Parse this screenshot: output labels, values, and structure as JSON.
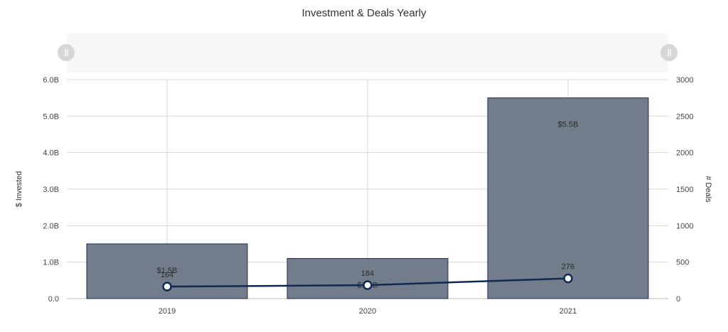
{
  "chart_data": {
    "type": "bar+line",
    "title": "Investment & Deals Yearly",
    "categories": [
      "2019",
      "2020",
      "2021"
    ],
    "series": [
      {
        "name": "$ Invested",
        "type": "bar",
        "axis": "left",
        "values": [
          1.5,
          1.1,
          5.5
        ],
        "unit": "B",
        "labels": [
          "$1.5B",
          "$1.1B",
          "$5.5B"
        ],
        "color": "#737c8a",
        "border": "#1f2f55"
      },
      {
        "name": "# Deals",
        "type": "line",
        "axis": "right",
        "values": [
          164,
          184,
          276
        ],
        "labels": [
          "164",
          "184",
          "276"
        ],
        "color": "#0f2a52"
      }
    ],
    "ylabel_left": "$ Invested",
    "ylabel_right": "# Deals",
    "ylim_left": [
      0,
      6.0
    ],
    "ylim_right": [
      0,
      3000
    ],
    "yticks_left": [
      "0.0",
      "1.0B",
      "2.0B",
      "3.0B",
      "4.0B",
      "5.0B",
      "6.0B"
    ],
    "yticks_right": [
      "0",
      "500",
      "1000",
      "1500",
      "2000",
      "2500",
      "3000"
    ],
    "grid": true,
    "navigator": true
  },
  "chart": {
    "title": "Investment & Deals Yearly",
    "left_axis_title": "$ Invested",
    "right_axis_title": "# Deals"
  }
}
